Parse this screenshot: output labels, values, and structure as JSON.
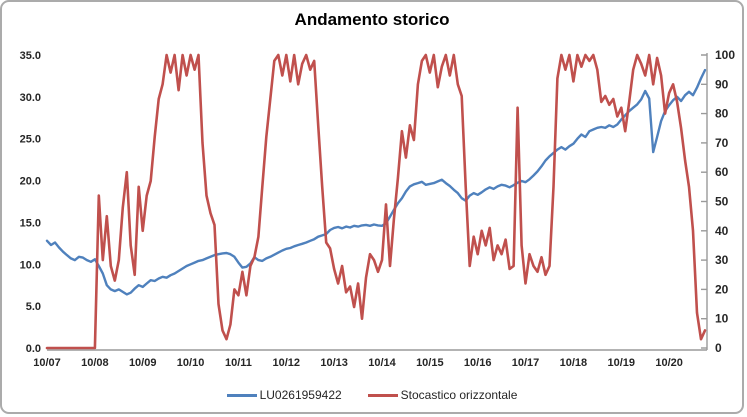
{
  "chart_data": {
    "type": "line",
    "title": "Andamento storico",
    "x_unit": "monthly points starting Oct 2007",
    "x_tick_labels": [
      "10/07",
      "10/08",
      "10/09",
      "10/10",
      "10/11",
      "10/12",
      "10/13",
      "10/14",
      "10/15",
      "10/16",
      "10/17",
      "10/18",
      "10/19",
      "10/20"
    ],
    "x_tick_month_indices": [
      0,
      12,
      24,
      36,
      48,
      60,
      72,
      84,
      96,
      108,
      120,
      132,
      144,
      156
    ],
    "left_axis": {
      "min": 0,
      "max": 35,
      "step": 5,
      "labels": [
        "35.0",
        "30.0",
        "25.0",
        "20.0",
        "15.0",
        "10.0",
        "5.0",
        "0.0"
      ]
    },
    "right_axis": {
      "min": 0,
      "max": 100,
      "step": 10,
      "labels": [
        "100",
        "90",
        "80",
        "70",
        "60",
        "50",
        "40",
        "30",
        "20",
        "10",
        "0"
      ]
    },
    "grid": "off",
    "legend_position": "bottom",
    "series": [
      {
        "name": "LU0261959422",
        "axis": "left",
        "color": "#4F81BD",
        "values": [
          12.8,
          12.3,
          12.6,
          12.0,
          11.5,
          11.1,
          10.7,
          10.5,
          10.9,
          10.8,
          10.5,
          10.3,
          10.6,
          9.8,
          8.9,
          7.5,
          7.0,
          6.8,
          7.0,
          6.7,
          6.4,
          6.6,
          7.1,
          7.5,
          7.3,
          7.7,
          8.1,
          8.0,
          8.3,
          8.5,
          8.4,
          8.7,
          8.9,
          9.2,
          9.5,
          9.8,
          10.0,
          10.2,
          10.4,
          10.5,
          10.7,
          10.9,
          11.1,
          11.2,
          11.3,
          11.35,
          11.2,
          10.9,
          10.2,
          9.6,
          9.7,
          10.1,
          10.85,
          10.5,
          10.4,
          10.7,
          10.9,
          11.15,
          11.4,
          11.65,
          11.85,
          11.95,
          12.15,
          12.3,
          12.45,
          12.6,
          12.8,
          13.0,
          13.3,
          13.45,
          13.6,
          14.1,
          14.35,
          14.45,
          14.3,
          14.5,
          14.4,
          14.6,
          14.5,
          14.65,
          14.7,
          14.6,
          14.75,
          14.65,
          14.6,
          14.9,
          15.7,
          16.5,
          17.3,
          17.9,
          18.7,
          19.3,
          19.55,
          19.7,
          19.85,
          19.5,
          19.6,
          19.7,
          19.9,
          20.1,
          19.7,
          19.35,
          18.9,
          18.5,
          17.9,
          17.6,
          18.2,
          18.5,
          18.3,
          18.6,
          18.95,
          19.2,
          19.0,
          19.3,
          19.5,
          19.4,
          19.2,
          19.45,
          19.75,
          19.95,
          19.8,
          20.15,
          20.6,
          21.1,
          21.7,
          22.4,
          22.9,
          23.3,
          23.7,
          24.0,
          23.7,
          24.1,
          24.4,
          25.0,
          25.5,
          25.2,
          25.9,
          26.1,
          26.3,
          26.4,
          26.3,
          26.6,
          26.4,
          26.7,
          27.3,
          27.8,
          28.3,
          28.7,
          29.1,
          29.7,
          30.7,
          29.8,
          23.4,
          25.2,
          27.1,
          28.3,
          29.0,
          29.6,
          30.0,
          29.5,
          30.2,
          30.6,
          30.2,
          31.1,
          32.2,
          33.2
        ]
      },
      {
        "name": "Stocastico orizzontale",
        "axis": "right",
        "color": "#C0504D",
        "values": [
          0,
          0,
          0,
          0,
          0,
          0,
          0,
          0,
          0,
          0,
          0,
          0,
          0,
          52,
          30,
          45,
          28,
          23,
          30,
          48,
          60,
          35,
          25,
          55,
          40,
          52,
          57,
          72,
          85,
          90,
          100,
          94,
          100,
          88,
          100,
          93,
          100,
          95,
          100,
          70,
          52,
          46,
          42,
          15,
          6,
          3,
          8,
          20,
          18,
          26,
          18,
          28,
          31,
          38,
          55,
          72,
          85,
          98,
          100,
          93,
          100,
          91,
          100,
          90,
          97,
          100,
          95,
          98,
          76,
          55,
          36,
          34,
          27,
          22,
          28,
          19,
          21,
          14,
          22,
          10,
          24,
          32,
          30,
          26,
          30,
          49,
          28,
          44,
          58,
          74,
          65,
          76,
          71,
          90,
          98,
          100,
          94,
          100,
          89,
          96,
          100,
          93,
          100,
          90,
          86,
          55,
          28,
          38,
          32,
          40,
          35,
          41,
          30,
          35,
          32,
          37,
          27,
          28,
          82,
          35,
          22,
          32,
          28,
          26,
          31,
          25,
          28,
          55,
          92,
          100,
          95,
          100,
          91,
          100,
          96,
          100,
          98,
          100,
          95,
          84,
          86,
          83,
          85,
          79,
          82,
          74,
          84,
          95,
          100,
          97,
          93,
          100,
          90,
          99,
          93,
          80,
          87,
          90,
          84,
          75,
          64,
          55,
          40,
          12,
          3,
          6
        ]
      }
    ]
  },
  "colors": {
    "axis_line": "#9a9a9a",
    "tick_text": "#262626",
    "frame_border": "#ababab",
    "background": "#ffffff"
  }
}
